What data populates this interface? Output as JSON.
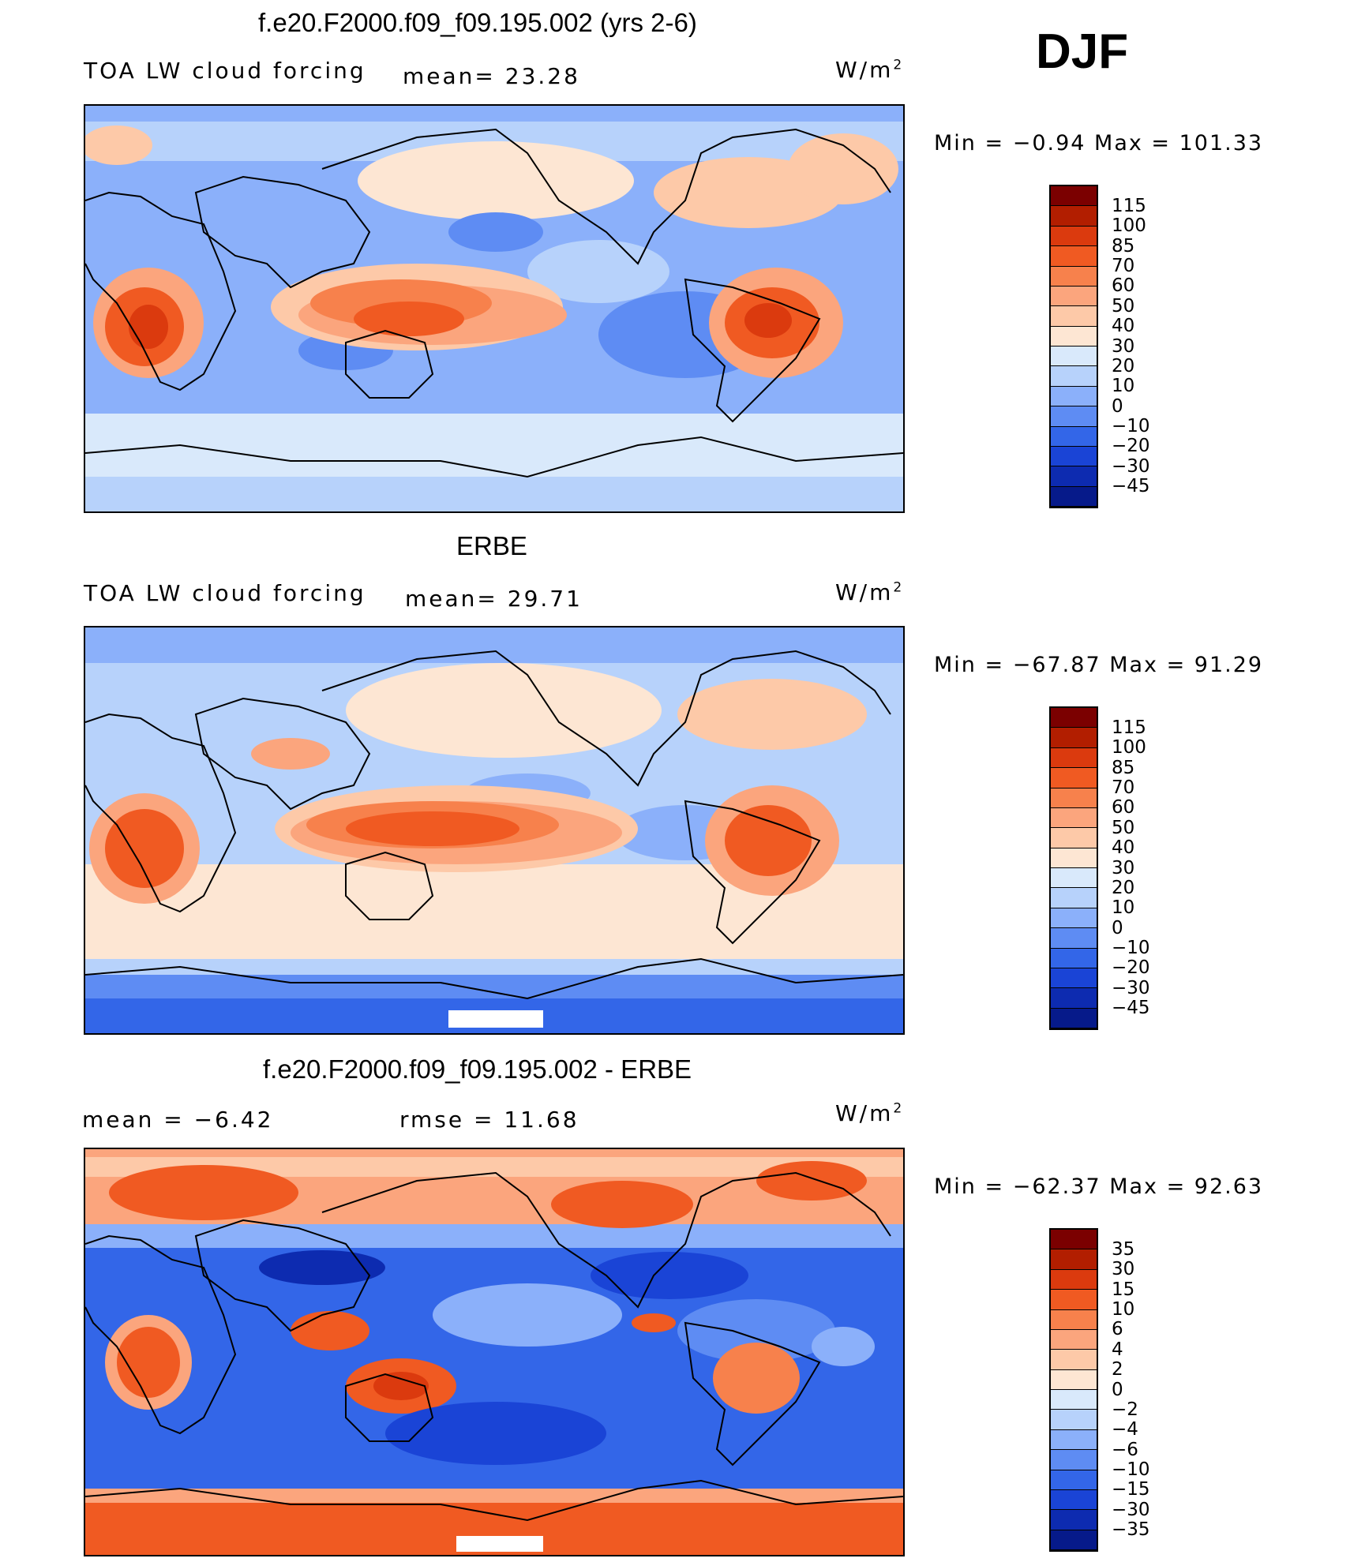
{
  "season_label": "DJF",
  "units": "W/m",
  "units_sup": "2",
  "panels": [
    {
      "title": "f.e20.F2000.f09_f09.195.002 (yrs 2-6)",
      "left_label": "TOA LW cloud forcing",
      "center_label": "mean=  23.28",
      "minmax": "Min  =  −0.94  Max  =  101.33",
      "map_name": "model-lw-cloud-forcing-map"
    },
    {
      "title": "ERBE",
      "left_label": "TOA LW cloud forcing",
      "center_label": "mean=  29.71",
      "minmax": "Min  = −67.87  Max  =   91.29",
      "map_name": "erbe-lw-cloud-forcing-map"
    },
    {
      "title": "f.e20.F2000.f09_f09.195.002 - ERBE",
      "left_label": "mean  =   −6.42",
      "center_label": "rmse  =   11.68",
      "minmax": "Min  = −62.37  Max  =   92.63",
      "map_name": "difference-map"
    }
  ],
  "colorbars": [
    {
      "ticks": [
        "115",
        "100",
        "85",
        "70",
        "60",
        "50",
        "40",
        "30",
        "20",
        "10",
        "0",
        "−10",
        "−20",
        "−30",
        "−45"
      ],
      "colors": [
        "#7b0000",
        "#b21e00",
        "#db3a0e",
        "#f05a22",
        "#f7814c",
        "#fba57d",
        "#fdc9a8",
        "#fde6d3",
        "#d9e9fb",
        "#b7d2fb",
        "#8bb0fa",
        "#5e8cf3",
        "#3366e8",
        "#1a44d6",
        "#0d2bb0",
        "#061a8a"
      ]
    },
    {
      "ticks": [
        "115",
        "100",
        "85",
        "70",
        "60",
        "50",
        "40",
        "30",
        "20",
        "10",
        "0",
        "−10",
        "−20",
        "−30",
        "−45"
      ],
      "colors": [
        "#7b0000",
        "#b21e00",
        "#db3a0e",
        "#f05a22",
        "#f7814c",
        "#fba57d",
        "#fdc9a8",
        "#fde6d3",
        "#d9e9fb",
        "#b7d2fb",
        "#8bb0fa",
        "#5e8cf3",
        "#3366e8",
        "#1a44d6",
        "#0d2bb0",
        "#061a8a"
      ]
    },
    {
      "ticks": [
        "35",
        "30",
        "15",
        "10",
        "6",
        "4",
        "2",
        "0",
        "−2",
        "−4",
        "−6",
        "−10",
        "−15",
        "−30",
        "−35"
      ],
      "colors": [
        "#7b0000",
        "#b21e00",
        "#db3a0e",
        "#f05a22",
        "#f7814c",
        "#fba57d",
        "#fdc9a8",
        "#fde6d3",
        "#d9e9fb",
        "#b7d2fb",
        "#8bb0fa",
        "#5e8cf3",
        "#3366e8",
        "#1a44d6",
        "#0d2bb0",
        "#061a8a"
      ]
    }
  ]
}
